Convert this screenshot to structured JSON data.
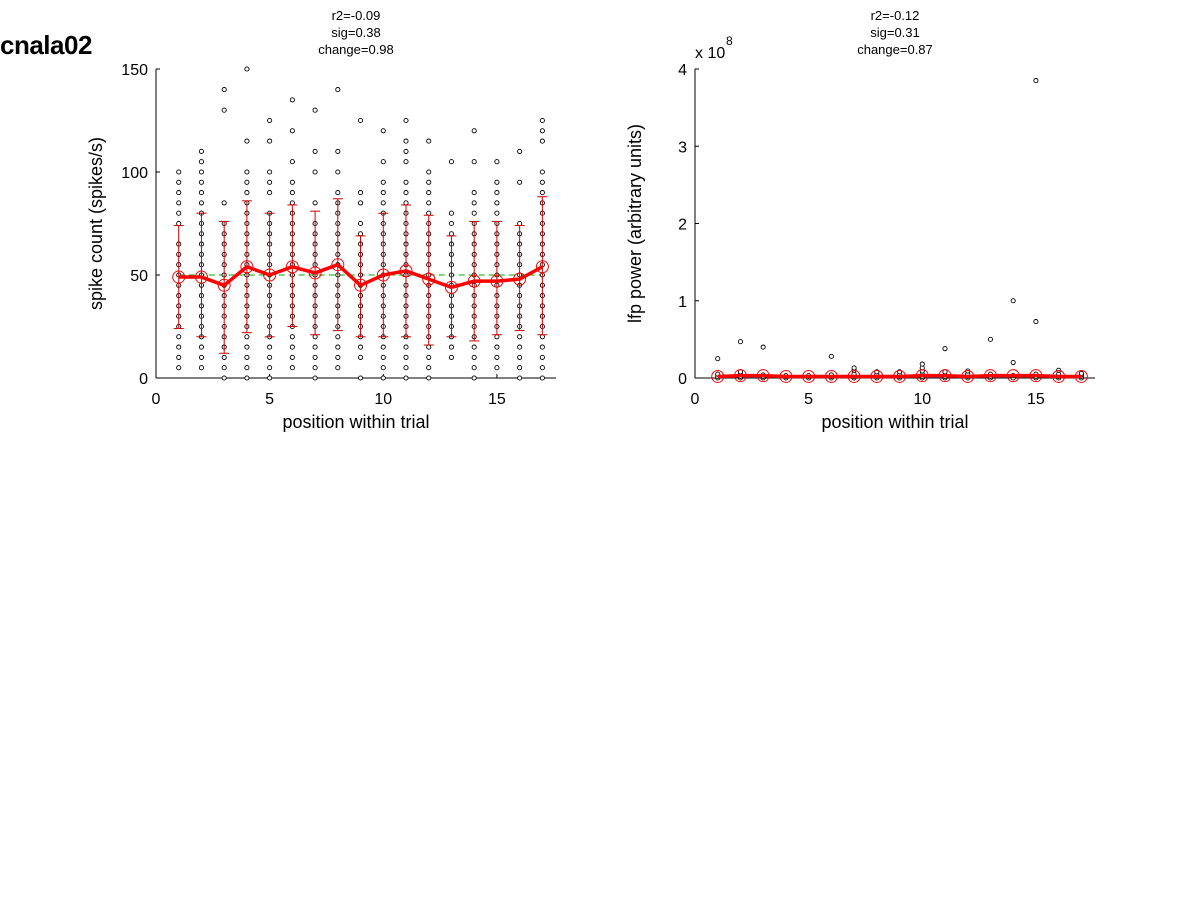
{
  "figure_title": "cnala02",
  "chart_data": [
    {
      "type": "scatter",
      "stats": [
        "r2=-0.09",
        "sig=0.38",
        "change=0.98"
      ],
      "xlabel": "position within trial",
      "ylabel": "spike count (spikes/s)",
      "xlim": [
        0,
        17.6
      ],
      "ylim": [
        0,
        150
      ],
      "xticks": [
        0,
        5,
        10,
        15
      ],
      "yticks": [
        0,
        50,
        100,
        150
      ],
      "grid": false,
      "reference_line": {
        "y": 50,
        "color": "#00aa00",
        "style": "dashed"
      },
      "scatter_points": [
        {
          "x": 1,
          "y": [
            5,
            10,
            15,
            20,
            25,
            30,
            35,
            40,
            45,
            50,
            55,
            60,
            65,
            75,
            80,
            85,
            90,
            95,
            100
          ]
        },
        {
          "x": 2,
          "y": [
            5,
            10,
            15,
            20,
            25,
            30,
            35,
            40,
            45,
            50,
            55,
            60,
            65,
            70,
            75,
            80,
            85,
            90,
            95,
            100,
            105,
            110
          ]
        },
        {
          "x": 3,
          "y": [
            0,
            5,
            10,
            15,
            20,
            25,
            30,
            35,
            40,
            45,
            50,
            55,
            60,
            65,
            70,
            75,
            85,
            130,
            140
          ]
        },
        {
          "x": 4,
          "y": [
            0,
            5,
            10,
            15,
            20,
            25,
            30,
            35,
            40,
            45,
            50,
            55,
            60,
            65,
            70,
            75,
            80,
            85,
            90,
            95,
            100,
            115,
            150
          ]
        },
        {
          "x": 5,
          "y": [
            0,
            5,
            10,
            15,
            20,
            25,
            30,
            35,
            40,
            45,
            50,
            55,
            60,
            65,
            70,
            75,
            80,
            90,
            95,
            100,
            115,
            125
          ]
        },
        {
          "x": 6,
          "y": [
            5,
            10,
            15,
            20,
            25,
            30,
            35,
            40,
            45,
            50,
            55,
            60,
            65,
            70,
            75,
            80,
            85,
            90,
            95,
            105,
            120,
            135
          ]
        },
        {
          "x": 7,
          "y": [
            0,
            5,
            10,
            15,
            20,
            25,
            30,
            35,
            40,
            45,
            50,
            55,
            60,
            65,
            70,
            75,
            85,
            100,
            110,
            130
          ]
        },
        {
          "x": 8,
          "y": [
            5,
            10,
            15,
            20,
            25,
            30,
            35,
            40,
            45,
            50,
            55,
            60,
            65,
            70,
            75,
            80,
            85,
            90,
            100,
            110,
            140
          ]
        },
        {
          "x": 9,
          "y": [
            0,
            10,
            15,
            20,
            25,
            30,
            35,
            40,
            45,
            50,
            55,
            60,
            65,
            70,
            75,
            85,
            90,
            125
          ]
        },
        {
          "x": 10,
          "y": [
            0,
            5,
            10,
            15,
            20,
            25,
            30,
            35,
            40,
            45,
            50,
            55,
            60,
            65,
            70,
            75,
            80,
            85,
            90,
            95,
            105,
            120
          ]
        },
        {
          "x": 11,
          "y": [
            0,
            5,
            10,
            15,
            20,
            25,
            30,
            35,
            40,
            45,
            50,
            55,
            60,
            65,
            70,
            75,
            80,
            85,
            90,
            95,
            105,
            110,
            115,
            125
          ]
        },
        {
          "x": 12,
          "y": [
            0,
            5,
            10,
            15,
            20,
            25,
            30,
            35,
            40,
            45,
            50,
            55,
            60,
            65,
            70,
            75,
            80,
            85,
            90,
            95,
            100,
            115
          ]
        },
        {
          "x": 13,
          "y": [
            10,
            15,
            20,
            25,
            30,
            35,
            40,
            45,
            50,
            55,
            60,
            65,
            70,
            75,
            80,
            105
          ]
        },
        {
          "x": 14,
          "y": [
            0,
            5,
            10,
            15,
            20,
            25,
            30,
            35,
            40,
            45,
            50,
            55,
            60,
            65,
            70,
            75,
            80,
            85,
            90,
            105,
            120
          ]
        },
        {
          "x": 15,
          "y": [
            5,
            10,
            15,
            20,
            25,
            30,
            35,
            40,
            45,
            50,
            55,
            60,
            65,
            70,
            75,
            80,
            85,
            90,
            95,
            105
          ]
        },
        {
          "x": 16,
          "y": [
            0,
            5,
            10,
            15,
            20,
            25,
            30,
            35,
            40,
            45,
            50,
            55,
            60,
            65,
            70,
            75,
            95,
            110
          ]
        },
        {
          "x": 17,
          "y": [
            0,
            5,
            10,
            15,
            20,
            25,
            30,
            35,
            40,
            45,
            50,
            55,
            60,
            65,
            70,
            75,
            80,
            85,
            90,
            95,
            100,
            115,
            120,
            125
          ]
        }
      ],
      "mean": {
        "x": [
          1,
          2,
          3,
          4,
          5,
          6,
          7,
          8,
          9,
          10,
          11,
          12,
          13,
          14,
          15,
          16,
          17
        ],
        "y": [
          49,
          49,
          45,
          54,
          50,
          54,
          51,
          55,
          45,
          50,
          52,
          48,
          44,
          47,
          47,
          48,
          54
        ]
      },
      "error": {
        "x": [
          1,
          2,
          3,
          4,
          5,
          6,
          7,
          8,
          9,
          10,
          11,
          12,
          13,
          14,
          15,
          16,
          17
        ],
        "lower": [
          24,
          20,
          12,
          22,
          20,
          25,
          21,
          23,
          20,
          20,
          20,
          16,
          20,
          18,
          21,
          23,
          21
        ],
        "upper": [
          74,
          80,
          76,
          86,
          80,
          84,
          81,
          87,
          69,
          80,
          84,
          79,
          69,
          76,
          76,
          74,
          88
        ]
      },
      "mean_color": "#ff0000",
      "error_color": "#cc0000"
    },
    {
      "type": "scatter",
      "stats": [
        "r2=-0.12",
        "sig=0.31",
        "change=0.87"
      ],
      "xlabel": "position within trial",
      "ylabel": "lfp power (arbitrary units)",
      "multiplier_label": "x 10",
      "multiplier_exponent": "8",
      "xlim": [
        0,
        17.6
      ],
      "ylim": [
        0,
        4
      ],
      "xticks": [
        0,
        5,
        10,
        15
      ],
      "yticks": [
        0,
        1,
        2,
        3,
        4
      ],
      "grid": false,
      "scatter_points": [
        {
          "x": 1,
          "y": [
            0.0,
            0.02,
            0.05,
            0.25
          ]
        },
        {
          "x": 2,
          "y": [
            0.0,
            0.02,
            0.05,
            0.08,
            0.47
          ]
        },
        {
          "x": 3,
          "y": [
            0.0,
            0.02,
            0.04,
            0.4
          ]
        },
        {
          "x": 4,
          "y": [
            0.0,
            0.02,
            0.03
          ]
        },
        {
          "x": 5,
          "y": [
            0.0,
            0.02,
            0.03
          ]
        },
        {
          "x": 6,
          "y": [
            0.0,
            0.02,
            0.04,
            0.28
          ]
        },
        {
          "x": 7,
          "y": [
            0.0,
            0.02,
            0.05,
            0.1,
            0.13
          ]
        },
        {
          "x": 8,
          "y": [
            0.0,
            0.02,
            0.05,
            0.08
          ]
        },
        {
          "x": 9,
          "y": [
            0.0,
            0.02,
            0.04,
            0.08
          ]
        },
        {
          "x": 10,
          "y": [
            0.0,
            0.02,
            0.05,
            0.09,
            0.13,
            0.18
          ]
        },
        {
          "x": 11,
          "y": [
            0.0,
            0.02,
            0.04,
            0.08,
            0.38
          ]
        },
        {
          "x": 12,
          "y": [
            0.0,
            0.02,
            0.05,
            0.09
          ]
        },
        {
          "x": 13,
          "y": [
            0.0,
            0.02,
            0.05,
            0.5
          ]
        },
        {
          "x": 14,
          "y": [
            0.0,
            0.03,
            0.2,
            1.0
          ]
        },
        {
          "x": 15,
          "y": [
            0.0,
            0.02,
            0.05,
            0.73,
            3.85
          ]
        },
        {
          "x": 16,
          "y": [
            0.0,
            0.02,
            0.05,
            0.1
          ]
        },
        {
          "x": 17,
          "y": [
            0.0,
            0.02,
            0.04,
            0.06
          ]
        }
      ],
      "mean": {
        "x": [
          1,
          2,
          3,
          4,
          5,
          6,
          7,
          8,
          9,
          10,
          11,
          12,
          13,
          14,
          15,
          16,
          17
        ],
        "y": [
          0.02,
          0.03,
          0.03,
          0.02,
          0.02,
          0.02,
          0.02,
          0.02,
          0.02,
          0.03,
          0.03,
          0.02,
          0.03,
          0.03,
          0.03,
          0.02,
          0.02
        ]
      },
      "mean_color": "#ff0000"
    }
  ]
}
